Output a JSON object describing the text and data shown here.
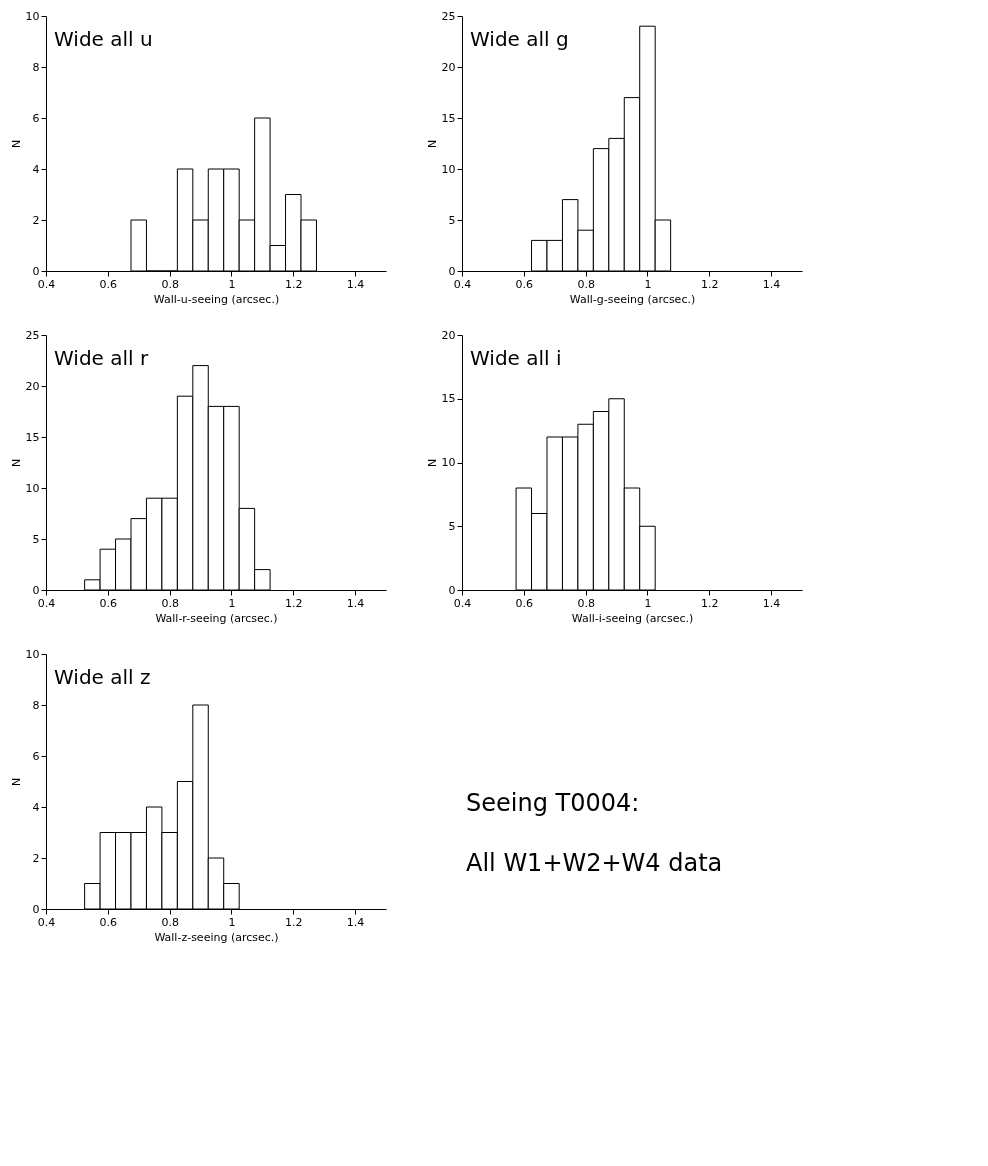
{
  "chart_data": [
    {
      "type": "histogram",
      "annotations": [
        "Wide all u"
      ],
      "xlabel": "Wall-u-seeing (arcsec.)",
      "ylabel": "N",
      "bins": [
        0.675,
        0.725,
        0.775,
        0.825,
        0.875,
        0.925,
        0.975,
        1.025,
        1.075,
        1.125,
        1.175,
        1.225,
        1.275
      ],
      "values": [
        2,
        0,
        0,
        4,
        2,
        4,
        4,
        2,
        6,
        1,
        3,
        2
      ],
      "color": "#000000",
      "xlim": [
        0.4,
        1.5
      ],
      "xticks": [
        0.4,
        0.6,
        0.8,
        1,
        1.2,
        1.4
      ],
      "ylim": [
        0,
        10
      ],
      "yticks": [
        0,
        2,
        4,
        6,
        8,
        10
      ]
    },
    {
      "type": "histogram",
      "annotations": [
        "Wide all g"
      ],
      "xlabel": "Wall-g-seeing (arcsec.)",
      "ylabel": "N",
      "bins": [
        0.625,
        0.675,
        0.725,
        0.775,
        0.825,
        0.875,
        0.925,
        0.975,
        1.025,
        1.075
      ],
      "values": [
        3,
        3,
        7,
        4,
        12,
        13,
        17,
        24,
        5
      ],
      "color": "#000000",
      "xlim": [
        0.4,
        1.5
      ],
      "xticks": [
        0.4,
        0.6,
        0.8,
        1,
        1.2,
        1.4
      ],
      "ylim": [
        0,
        25
      ],
      "yticks": [
        0,
        5,
        10,
        15,
        20,
        25
      ]
    },
    {
      "type": "histogram",
      "annotations": [
        "Wide all r"
      ],
      "xlabel": "Wall-r-seeing (arcsec.)",
      "ylabel": "N",
      "bins": [
        0.525,
        0.575,
        0.625,
        0.675,
        0.725,
        0.775,
        0.825,
        0.875,
        0.925,
        0.975,
        1.025,
        1.075,
        1.125
      ],
      "values": [
        1,
        4,
        5,
        7,
        9,
        9,
        19,
        22,
        18,
        18,
        8,
        2
      ],
      "color": "#000000",
      "xlim": [
        0.4,
        1.5
      ],
      "xticks": [
        0.4,
        0.6,
        0.8,
        1,
        1.2,
        1.4
      ],
      "ylim": [
        0,
        25
      ],
      "yticks": [
        0,
        5,
        10,
        15,
        20,
        25
      ]
    },
    {
      "type": "histogram",
      "annotations": [
        "Wide all i"
      ],
      "xlabel": "Wall-i-seeing (arcsec.)",
      "ylabel": "N",
      "bins": [
        0.575,
        0.625,
        0.675,
        0.725,
        0.775,
        0.825,
        0.875,
        0.925,
        0.975,
        1.025
      ],
      "values": [
        8,
        6,
        12,
        12,
        13,
        14,
        15,
        8,
        5
      ],
      "color": "#000000",
      "xlim": [
        0.4,
        1.5
      ],
      "xticks": [
        0.4,
        0.6,
        0.8,
        1,
        1.2,
        1.4
      ],
      "ylim": [
        0,
        20
      ],
      "yticks": [
        0,
        5,
        10,
        15,
        20
      ]
    },
    {
      "type": "histogram",
      "annotations": [
        "Wide all z"
      ],
      "xlabel": "Wall-z-seeing (arcsec.)",
      "ylabel": "N",
      "bins": [
        0.525,
        0.575,
        0.625,
        0.675,
        0.725,
        0.775,
        0.825,
        0.875,
        0.925,
        0.975,
        1.025
      ],
      "values": [
        1,
        3,
        3,
        3,
        4,
        3,
        5,
        8,
        2,
        1
      ],
      "color": "#000000",
      "xlim": [
        0.4,
        1.5
      ],
      "xticks": [
        0.4,
        0.6,
        0.8,
        1,
        1.2,
        1.4
      ],
      "ylim": [
        0,
        10
      ],
      "yticks": [
        0,
        2,
        4,
        6,
        8,
        10
      ]
    },
    {
      "type": "other",
      "annotations": [
        "Seeing T0004:",
        "All W1+W2+W4 data"
      ]
    }
  ]
}
